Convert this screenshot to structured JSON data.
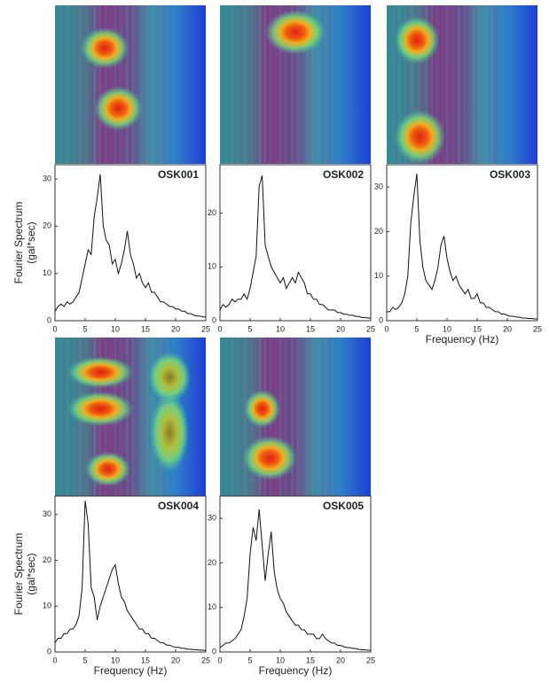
{
  "chart_data": [
    {
      "type": "line",
      "title": "OSK001",
      "y_label": [
        "Fourier Spectrum",
        "(gal*sec)"
      ],
      "color": "#111111",
      "x": [
        0,
        0.5,
        1,
        1.5,
        2,
        2.5,
        3,
        3.5,
        4,
        4.5,
        5,
        5.5,
        6,
        6.5,
        7,
        7.5,
        8,
        8.5,
        9,
        9.5,
        10,
        10.5,
        11,
        11.5,
        12,
        12.5,
        13,
        13.5,
        14,
        14.5,
        15,
        15.5,
        16,
        16.5,
        17,
        17.5,
        18,
        18.5,
        19,
        19.5,
        20,
        20.5,
        21,
        21.5,
        22,
        22.5,
        23,
        23.5,
        24,
        24.5,
        25
      ],
      "values": [
        2,
        3,
        3.5,
        3,
        4,
        3.5,
        4,
        5,
        6,
        9,
        12,
        15,
        14,
        22,
        26,
        31,
        20,
        17,
        16,
        12,
        13,
        10,
        12,
        15,
        19,
        14,
        12,
        9,
        10,
        8,
        7,
        8,
        6,
        6,
        5,
        4,
        4,
        3.5,
        3,
        3,
        2.5,
        2.5,
        2,
        2,
        1.5,
        1.5,
        1.2,
        1,
        1,
        0.8,
        0.8
      ],
      "xlim": [
        0,
        25
      ],
      "xticks": [
        0,
        5,
        10,
        15,
        20,
        25
      ],
      "ylim": [
        0,
        33
      ],
      "yticks": [
        0,
        10,
        20,
        30
      ]
    },
    {
      "type": "line",
      "title": "OSK002",
      "color": "#111111",
      "x": [
        0,
        0.5,
        1,
        1.5,
        2,
        2.5,
        3,
        3.5,
        4,
        4.5,
        5,
        5.5,
        6,
        6.5,
        7,
        7.5,
        8,
        8.5,
        9,
        9.5,
        10,
        10.5,
        11,
        11.5,
        12,
        12.5,
        13,
        13.5,
        14,
        14.5,
        15,
        15.5,
        16,
        16.5,
        17,
        17.5,
        18,
        18.5,
        19,
        19.5,
        20,
        20.5,
        21,
        21.5,
        22,
        22.5,
        23,
        23.5,
        24,
        24.5,
        25
      ],
      "values": [
        2,
        3,
        2.5,
        3,
        4,
        3.5,
        4,
        4,
        5,
        4,
        6,
        9,
        12,
        25,
        27,
        14,
        12,
        10,
        9,
        8,
        7,
        8,
        6,
        7,
        8,
        7,
        9,
        8,
        7,
        5,
        5,
        4,
        4,
        3,
        3,
        2.5,
        2,
        2,
        2,
        1.5,
        1.5,
        1.2,
        1.2,
        1,
        1,
        0.8,
        0.8,
        0.6,
        0.6,
        0.5,
        0.5
      ],
      "xlim": [
        0,
        25
      ],
      "xticks": [
        0,
        5,
        10,
        15,
        20,
        25
      ],
      "ylim": [
        0,
        29
      ],
      "yticks": [
        0,
        10,
        20
      ]
    },
    {
      "type": "line",
      "title": "OSK003",
      "x_label": "Frequency (Hz)",
      "color": "#111111",
      "x": [
        0,
        0.5,
        1,
        1.5,
        2,
        2.5,
        3,
        3.5,
        4,
        4.5,
        5,
        5.5,
        6,
        6.5,
        7,
        7.5,
        8,
        8.5,
        9,
        9.5,
        10,
        10.5,
        11,
        11.5,
        12,
        12.5,
        13,
        13.5,
        14,
        14.5,
        15,
        15.5,
        16,
        16.5,
        17,
        17.5,
        18,
        18.5,
        19,
        19.5,
        20,
        20.5,
        21,
        21.5,
        22,
        22.5,
        23,
        23.5,
        24,
        24.5,
        25
      ],
      "values": [
        2,
        2,
        3,
        2.5,
        3,
        4,
        6,
        10,
        22,
        28,
        33,
        18,
        12,
        9,
        8,
        7,
        9,
        12,
        17,
        19,
        14,
        11,
        9,
        10,
        8,
        7,
        6,
        7,
        5,
        5,
        6,
        4,
        4,
        3,
        3,
        2.5,
        2,
        2,
        1.5,
        1.5,
        1.2,
        1,
        1,
        0.8,
        0.8,
        0.6,
        0.6,
        0.5,
        0.5,
        0.4,
        0.4
      ],
      "xlim": [
        0,
        25
      ],
      "xticks": [
        0,
        5,
        10,
        15,
        20,
        25
      ],
      "ylim": [
        0,
        35
      ],
      "yticks": [
        0,
        10,
        20,
        30
      ]
    },
    {
      "type": "line",
      "title": "OSK004",
      "x_label": "Frequency (Hz)",
      "y_label": [
        "Fourier Spectrum",
        "(gal*sec)"
      ],
      "color": "#111111",
      "x": [
        0,
        0.5,
        1,
        1.5,
        2,
        2.5,
        3,
        3.5,
        4,
        4.5,
        5,
        5.5,
        6,
        6.5,
        7,
        7.5,
        8,
        8.5,
        9,
        9.5,
        10,
        10.5,
        11,
        11.5,
        12,
        12.5,
        13,
        13.5,
        14,
        14.5,
        15,
        15.5,
        16,
        16.5,
        17,
        17.5,
        18,
        18.5,
        19,
        19.5,
        20,
        20.5,
        21,
        21.5,
        22,
        22.5,
        23,
        23.5,
        24,
        24.5,
        25
      ],
      "values": [
        2,
        3,
        3,
        4,
        4,
        5,
        5,
        6,
        8,
        14,
        33,
        28,
        14,
        12,
        7,
        10,
        12,
        14,
        16,
        18,
        19,
        15,
        12,
        11,
        9,
        8,
        7,
        6,
        5,
        5,
        4,
        4,
        3,
        3,
        2.5,
        2,
        2,
        1.5,
        1.5,
        1.2,
        1,
        1,
        0.8,
        0.8,
        0.6,
        0.6,
        0.5,
        0.5,
        0.4,
        0.4,
        0.3
      ],
      "xlim": [
        0,
        25
      ],
      "xticks": [
        0,
        5,
        10,
        15,
        20,
        25
      ],
      "ylim": [
        0,
        34
      ],
      "yticks": [
        0,
        10,
        20,
        30
      ]
    },
    {
      "type": "line",
      "title": "OSK005",
      "x_label": "Frequency (Hz)",
      "color": "#111111",
      "x": [
        0,
        0.5,
        1,
        1.5,
        2,
        2.5,
        3,
        3.5,
        4,
        4.5,
        5,
        5.5,
        6,
        6.5,
        7,
        7.5,
        8,
        8.5,
        9,
        9.5,
        10,
        10.5,
        11,
        11.5,
        12,
        12.5,
        13,
        13.5,
        14,
        14.5,
        15,
        15.5,
        16,
        16.5,
        17,
        17.5,
        18,
        18.5,
        19,
        19.5,
        20,
        20.5,
        21,
        21.5,
        22,
        22.5,
        23,
        23.5,
        24,
        24.5,
        25
      ],
      "values": [
        1,
        1.5,
        2,
        2,
        2.5,
        3,
        4,
        5,
        8,
        12,
        22,
        28,
        25,
        32,
        24,
        16,
        22,
        27,
        18,
        14,
        12,
        11,
        9,
        8,
        7,
        6,
        6,
        5,
        5,
        4,
        4,
        4,
        3,
        3,
        4,
        3,
        2.5,
        2,
        2,
        1.5,
        1.5,
        1.2,
        1,
        1,
        0.8,
        0.8,
        0.6,
        0.5,
        0.5,
        0.4,
        0.4
      ],
      "xlim": [
        0,
        25
      ],
      "xticks": [
        0,
        5,
        10,
        15,
        20,
        25
      ],
      "ylim": [
        0,
        35
      ],
      "yticks": [
        0,
        10,
        20,
        30
      ]
    }
  ]
}
